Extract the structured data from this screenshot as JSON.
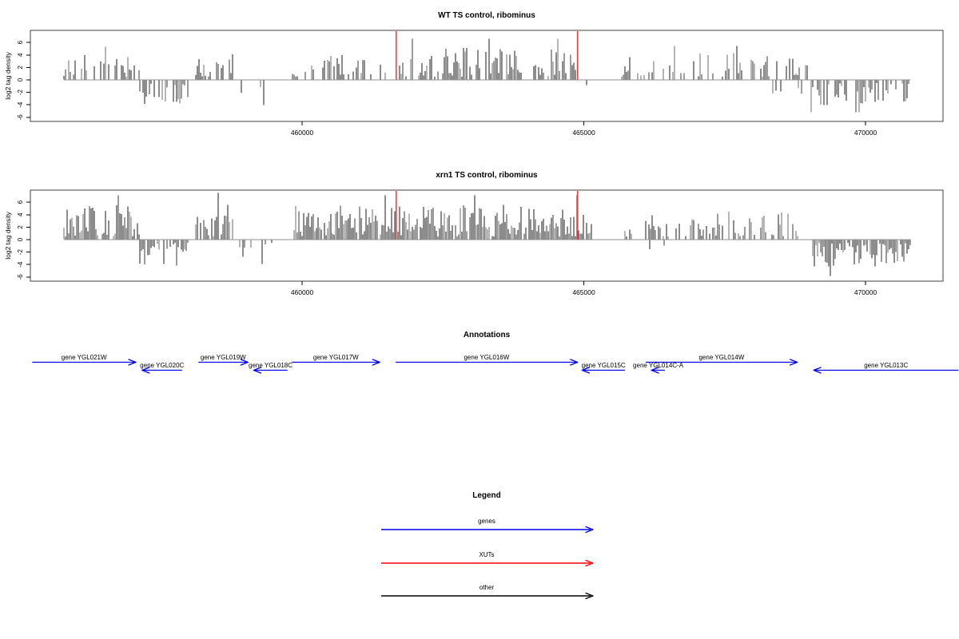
{
  "colors": {
    "genes": "#0000EE",
    "xuts": "#FF0000",
    "other": "#000000",
    "bars": "#1A1A1A",
    "zero_line": "#909090",
    "box": "#404040",
    "xut_marker": "#F03C3C",
    "gene_label": "#0000CC"
  },
  "chart_data": {
    "type": "bar",
    "x_axis": {
      "ticks": [
        460000,
        465000,
        470000
      ],
      "xlim": [
        455180,
        471370
      ]
    },
    "panels": [
      {
        "title": "WT TS control, ribominus",
        "ylabel": "log2 tag density",
        "ylim": [
          -6.7,
          8
        ],
        "y_ticks": [
          -6,
          -4,
          -2,
          0,
          2,
          4,
          6
        ],
        "x_ticks": [
          460000,
          465000,
          470000
        ],
        "data_xrange": [
          455770,
          470800
        ],
        "xut_markers": [
          461670,
          464890
        ],
        "seed": 7,
        "segments": [
          {
            "from": 455770,
            "to": 457120,
            "sign": 1,
            "density": 0.55,
            "amp": [
              0.5,
              4.2
            ]
          },
          {
            "from": 457120,
            "to": 458000,
            "sign": -1,
            "density": 0.6,
            "amp": [
              0.5,
              3.9
            ]
          },
          {
            "from": 458110,
            "to": 458780,
            "sign": 1,
            "density": 0.62,
            "amp": [
              0.5,
              4.4
            ]
          },
          {
            "from": 458780,
            "to": 459600,
            "sign": -1,
            "density": 0.12,
            "amp": [
              0.5,
              3.2
            ]
          },
          {
            "from": 459820,
            "to": 461130,
            "sign": 1,
            "density": 0.55,
            "amp": [
              0.5,
              4.1
            ]
          },
          {
            "from": 461130,
            "to": 461590,
            "sign": 1,
            "density": 0.2,
            "amp": [
              0.5,
              2.6
            ]
          },
          {
            "from": 461670,
            "to": 464890,
            "sign": 1,
            "density": 0.68,
            "amp": [
              0.5,
              5.2
            ]
          },
          {
            "from": 464900,
            "to": 465100,
            "sign": -1,
            "density": 0.35,
            "amp": [
              0.5,
              2.6
            ]
          },
          {
            "from": 465670,
            "to": 468990,
            "sign": 1,
            "density": 0.5,
            "amp": [
              0.5,
              4.3
            ]
          },
          {
            "from": 467900,
            "to": 469000,
            "sign": -1,
            "density": 0.07,
            "amp": [
              0.5,
              2.6
            ]
          },
          {
            "from": 469030,
            "to": 470800,
            "sign": -1,
            "density": 0.6,
            "amp": [
              0.5,
              4.1
            ]
          }
        ]
      },
      {
        "title": "xrn1 TS control, ribominus",
        "ylabel": "log2 tag density",
        "ylim": [
          -6.7,
          8
        ],
        "y_ticks": [
          -6,
          -4,
          -2,
          0,
          2,
          4,
          6
        ],
        "x_ticks": [
          460000,
          465000,
          470000
        ],
        "data_xrange": [
          455770,
          470800
        ],
        "xut_markers": [
          461670,
          464890
        ],
        "seed": 13,
        "segments": [
          {
            "from": 455770,
            "to": 457120,
            "sign": 1,
            "density": 0.85,
            "amp": [
              0.5,
              5.6
            ]
          },
          {
            "from": 457120,
            "to": 458000,
            "sign": -1,
            "density": 0.85,
            "amp": [
              0.5,
              4.4
            ]
          },
          {
            "from": 458110,
            "to": 458780,
            "sign": 1,
            "density": 0.85,
            "amp": [
              0.5,
              5.9
            ]
          },
          {
            "from": 458780,
            "to": 459500,
            "sign": -1,
            "density": 0.3,
            "amp": [
              0.5,
              3.1
            ]
          },
          {
            "from": 459820,
            "to": 464890,
            "sign": 1,
            "density": 0.9,
            "amp": [
              0.5,
              5.6
            ]
          },
          {
            "from": 464900,
            "to": 465150,
            "sign": 1,
            "density": 0.75,
            "amp": [
              0.5,
              4.1
            ]
          },
          {
            "from": 465730,
            "to": 468850,
            "sign": 1,
            "density": 0.55,
            "amp": [
              0.5,
              4.6
            ]
          },
          {
            "from": 466000,
            "to": 468100,
            "sign": -1,
            "density": 0.06,
            "amp": [
              0.5,
              2.4
            ]
          },
          {
            "from": 468900,
            "to": 469000,
            "sign": -1,
            "density": 0.35,
            "amp": [
              0.5,
              2.1
            ]
          },
          {
            "from": 469050,
            "to": 470800,
            "sign": -1,
            "density": 0.9,
            "amp": [
              0.5,
              4.6
            ]
          }
        ]
      }
    ],
    "annotations": {
      "title": "Annotations",
      "genes": [
        {
          "label": "gene YGL021W",
          "start": 455210,
          "end": 457050,
          "strand": "+"
        },
        {
          "label": "gene YGL020C",
          "start": 457160,
          "end": 457870,
          "strand": "-"
        },
        {
          "label": "gene YGL019W",
          "start": 458160,
          "end": 459040,
          "strand": "+"
        },
        {
          "label": "gene YGL018C",
          "start": 459140,
          "end": 459740,
          "strand": "-"
        },
        {
          "label": "gene YGL017W",
          "start": 459820,
          "end": 461380,
          "strand": "+"
        },
        {
          "label": "gene YGL016W",
          "start": 461660,
          "end": 464890,
          "strand": "+"
        },
        {
          "label": "gene YGL015C",
          "start": 464970,
          "end": 465730,
          "strand": "-"
        },
        {
          "label": "gene YGL014C-A",
          "start": 466200,
          "end": 466440,
          "strand": "-"
        },
        {
          "label": "gene YGL014W",
          "start": 466100,
          "end": 468790,
          "strand": "+"
        },
        {
          "label": "gene YGL013C",
          "start": 469080,
          "end": 471650,
          "strand": "-"
        }
      ]
    },
    "legend": {
      "title": "Legend",
      "items": [
        {
          "label": "genes",
          "color": "#0000EE"
        },
        {
          "label": "XUTs",
          "color": "#FF0000"
        },
        {
          "label": "other",
          "color": "#000000"
        }
      ]
    }
  }
}
